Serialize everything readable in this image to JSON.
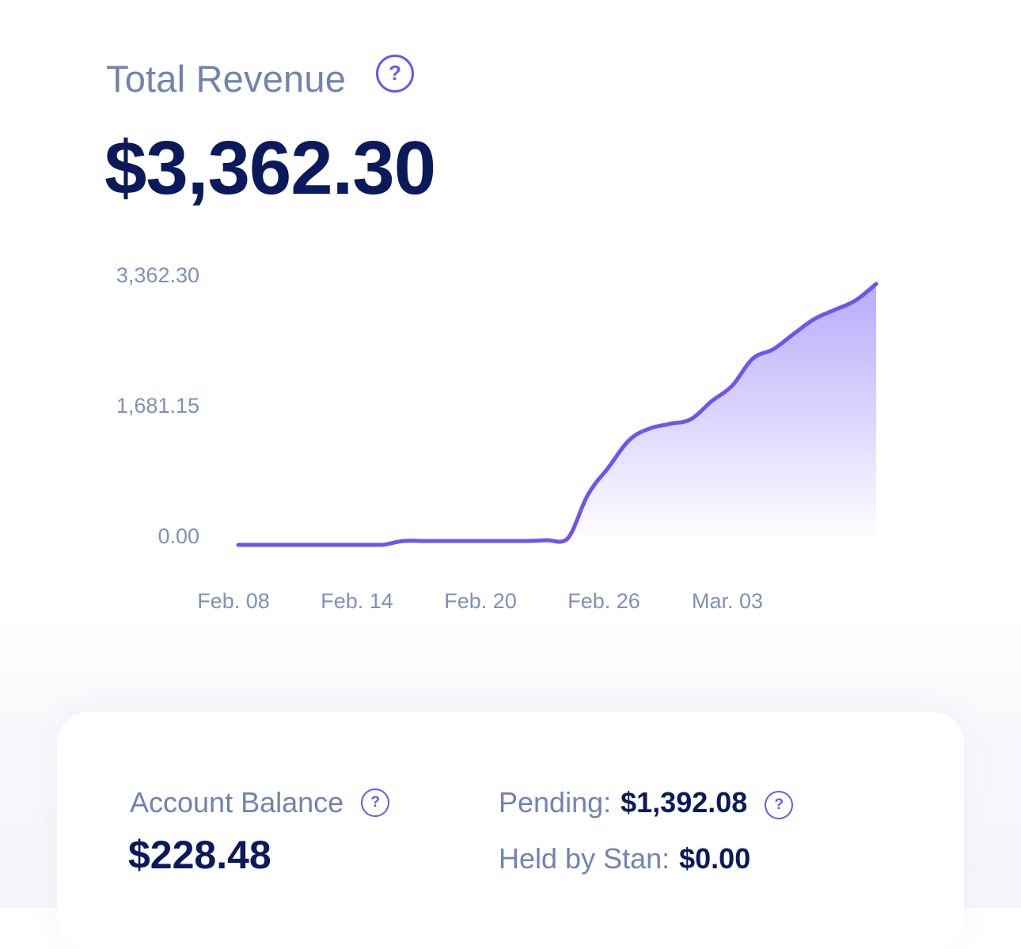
{
  "revenue": {
    "label": "Total Revenue",
    "value": "$3,362.30",
    "help_icon": "question-mark-circle-icon"
  },
  "chart_data": {
    "type": "area",
    "title": "",
    "xlabel": "",
    "ylabel": "",
    "ylim": [
      0,
      3362.3
    ],
    "y_ticks": [
      "3,362.30",
      "1,681.15",
      "0.00"
    ],
    "x_ticks": [
      "Feb. 08",
      "Feb. 14",
      "Feb. 20",
      "Feb. 26",
      "Mar. 03"
    ],
    "grid": false,
    "legend": "none",
    "colors": {
      "line": "#6e55f0",
      "fill_top": "#b8abfb",
      "fill_bottom": "#ffffff"
    },
    "series": [
      {
        "x": [
          "2023-02-08",
          "2023-02-09",
          "2023-02-10",
          "2023-02-11",
          "2023-02-12",
          "2023-02-13",
          "2023-02-14",
          "2023-02-15",
          "2023-02-16",
          "2023-02-17",
          "2023-02-18",
          "2023-02-19",
          "2023-02-20",
          "2023-02-21",
          "2023-02-22",
          "2023-02-23",
          "2023-02-24",
          "2023-02-25",
          "2023-02-26",
          "2023-02-27",
          "2023-02-28",
          "2023-03-01",
          "2023-03-02",
          "2023-03-03",
          "2023-03-04",
          "2023-03-05",
          "2023-03-06",
          "2023-03-07",
          "2023-03-08",
          "2023-03-09",
          "2023-03-10",
          "2023-03-11"
        ],
        "values": [
          0,
          0,
          0,
          0,
          0,
          0,
          0,
          0,
          50,
          50,
          50,
          50,
          50,
          50,
          50,
          60,
          80,
          650,
          1000,
          1350,
          1500,
          1560,
          1620,
          1850,
          2050,
          2400,
          2520,
          2720,
          2910,
          3030,
          3150,
          3362.3
        ]
      }
    ]
  },
  "balance": {
    "label": "Account Balance",
    "value": "$228.48",
    "help_icon": "question-mark-circle-icon"
  },
  "pending": {
    "label": "Pending:",
    "value": "$1,392.08",
    "help_icon": "question-mark-circle-icon"
  },
  "held": {
    "label": "Held by Stan:",
    "value": "$0.00"
  }
}
